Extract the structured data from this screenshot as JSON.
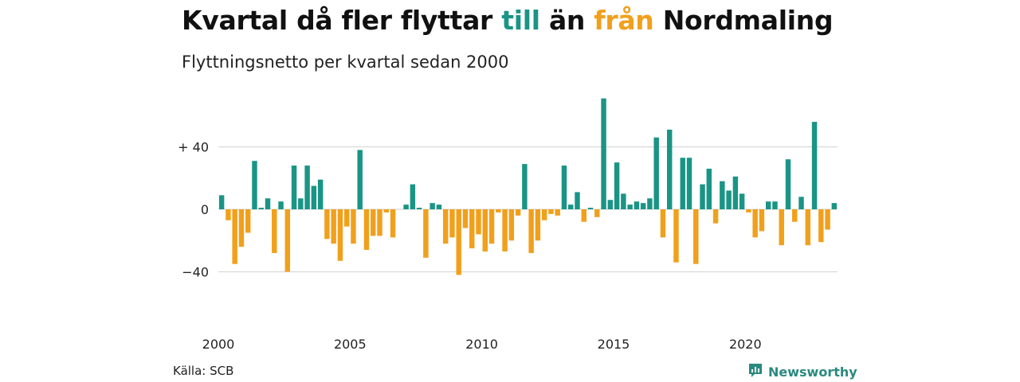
{
  "title": {
    "part1": "Kvartal då fler flyttar ",
    "highlight_to": "till",
    "part2": " än ",
    "highlight_from": "från",
    "part3": " Nordmaling"
  },
  "subtitle": "Flyttningsnetto per kvartal sedan 2000",
  "source": "Källa: SCB",
  "brand": {
    "name": "Newsworthy",
    "icon": "newsworthy-logo-icon"
  },
  "colors": {
    "positive": "#1a9485",
    "negative": "#f1a01c",
    "grid": "#d9d9d9"
  },
  "chart_data": {
    "type": "bar",
    "start_year": 2000,
    "xtick_labels": [
      "2000",
      "2005",
      "2010",
      "2015",
      "2020"
    ],
    "ytick_labels": [
      "+ 40",
      "0",
      "−40"
    ],
    "ytick_values": [
      40,
      0,
      -40
    ],
    "ylim": [
      -50,
      80
    ],
    "grid": true,
    "values": [
      9,
      -7,
      -35,
      -24,
      -15,
      31,
      1,
      7,
      -28,
      5,
      -40,
      28,
      7,
      28,
      15,
      19,
      -19,
      -22,
      -33,
      -11,
      -22,
      38,
      -26,
      -17,
      -17,
      -2,
      -18,
      0,
      3,
      16,
      1,
      -31,
      4,
      3,
      -22,
      -18,
      -42,
      -12,
      -25,
      -16,
      -27,
      -22,
      -2,
      -27,
      -20,
      -4,
      29,
      -28,
      -20,
      -7,
      -3,
      -4,
      28,
      3,
      11,
      -8,
      1,
      -5,
      71,
      6,
      30,
      10,
      3,
      5,
      4,
      7,
      46,
      -18,
      51,
      -34,
      33,
      33,
      -35,
      16,
      26,
      -9,
      18,
      12,
      21,
      10,
      -2,
      -18,
      -14,
      5,
      5,
      -23,
      32,
      -8,
      8,
      -23,
      56,
      -21,
      -13,
      4
    ]
  }
}
